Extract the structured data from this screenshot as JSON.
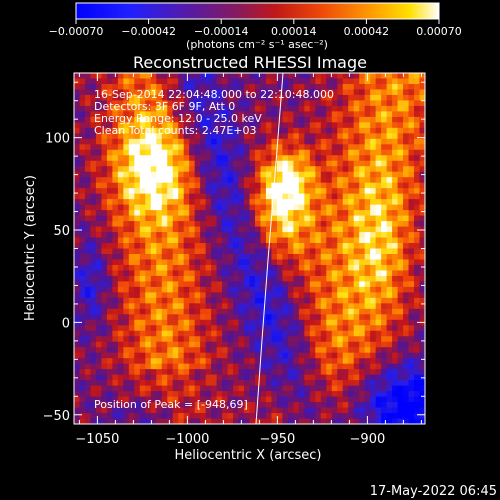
{
  "colorbar": {
    "ticks": [
      "-0.00070",
      "-0.00042",
      "-0.00014",
      "0.00014",
      "0.00042",
      "0.00070"
    ],
    "units_text": "(photons cm⁻² s⁻¹ asec⁻²)",
    "colors": [
      "#0000ff",
      "#4b1aa8",
      "#7a1a5c",
      "#b2102a",
      "#e83a10",
      "#ff8a00",
      "#ffd000",
      "#ffffff"
    ]
  },
  "chart_data": {
    "type": "heatmap",
    "title": "Reconstructed RHESSI Image",
    "xlabel": "Heliocentric X (arcsec)",
    "ylabel": "Heliocentric Y (arcsec)",
    "xlim": [
      -1063,
      -868
    ],
    "ylim": [
      -55,
      135
    ],
    "x_ticks": [
      -1050,
      -1000,
      -950,
      -900
    ],
    "y_ticks": [
      -50,
      0,
      50,
      100
    ],
    "x_tick_labels": [
      "−1050",
      "−1000",
      "−950",
      "−900"
    ],
    "y_tick_labels": [
      "−50",
      "0",
      "50",
      "100"
    ],
    "colorbar_range": [
      -0.0007,
      0.0007
    ],
    "annotations": [
      "16-Sep-2014 22:04:48.000 to 22:10:48.000",
      "Detectors: 3F 6F 9F, Att 0",
      "Energy Range: 12.0 - 25.0 keV",
      "Clean    Total counts: 2.47E+03"
    ],
    "peak_text": "Position of Peak = [-948,69]",
    "peak": [
      -948,
      69
    ]
  },
  "footer": {
    "timestamp": "17-May-2022 06:45"
  }
}
